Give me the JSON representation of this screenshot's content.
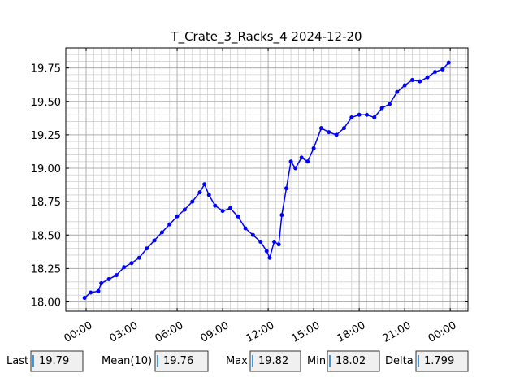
{
  "chart_data": {
    "type": "line",
    "title": "T_Crate_3_Racks_4 2024-12-20",
    "x": [
      -0.1,
      0.3,
      0.8,
      1.0,
      1.5,
      2.0,
      2.5,
      3.0,
      3.5,
      4.0,
      4.5,
      5.0,
      5.5,
      6.0,
      6.5,
      7.0,
      7.5,
      7.8,
      8.1,
      8.5,
      9.0,
      9.5,
      10.0,
      10.5,
      11.0,
      11.5,
      11.9,
      12.1,
      12.4,
      12.7,
      12.9,
      13.2,
      13.5,
      13.8,
      14.2,
      14.6,
      15.0,
      15.5,
      16.0,
      16.5,
      17.0,
      17.5,
      18.0,
      18.5,
      19.0,
      19.5,
      20.0,
      20.5,
      21.0,
      21.5,
      22.0,
      22.5,
      23.0,
      23.5,
      23.9
    ],
    "series": [
      {
        "color": "#0000ff",
        "values": [
          18.03,
          18.07,
          18.08,
          18.14,
          18.17,
          18.2,
          18.26,
          18.29,
          18.33,
          18.4,
          18.46,
          18.52,
          18.58,
          18.64,
          18.69,
          18.75,
          18.82,
          18.88,
          18.8,
          18.72,
          18.68,
          18.7,
          18.64,
          18.55,
          18.5,
          18.45,
          18.38,
          18.33,
          18.45,
          18.43,
          18.65,
          18.85,
          19.05,
          19.0,
          19.08,
          19.05,
          19.15,
          19.3,
          19.27,
          19.25,
          19.3,
          19.38,
          19.4,
          19.4,
          19.38,
          19.45,
          19.48,
          19.57,
          19.62,
          19.66,
          19.65,
          19.68,
          19.72,
          19.74,
          19.79
        ]
      }
    ],
    "xlim": [
      -1.34,
      25.17
    ],
    "ylim": [
      17.93,
      19.9
    ],
    "xticks": [
      {
        "value": 0,
        "label": "00:00"
      },
      {
        "value": 3,
        "label": "03:00"
      },
      {
        "value": 6,
        "label": "06:00"
      },
      {
        "value": 9,
        "label": "09:00"
      },
      {
        "value": 12,
        "label": "12:00"
      },
      {
        "value": 15,
        "label": "15:00"
      },
      {
        "value": 18,
        "label": "18:00"
      },
      {
        "value": 21,
        "label": "21:00"
      },
      {
        "value": 24,
        "label": "00:00"
      }
    ],
    "yticks": [
      {
        "value": 18,
        "label": "18.00"
      },
      18.25,
      {
        "value": 18.5,
        "label": "18.50"
      },
      18.75,
      {
        "value": 19,
        "label": "19.00"
      },
      19.25,
      {
        "value": 19.5,
        "label": "19.50"
      },
      19.75
    ],
    "grid": true
  },
  "stats": [
    {
      "label": "Last",
      "value": 19.79
    },
    {
      "label": "Mean(10)",
      "value": 19.76
    },
    {
      "label": "Max",
      "value": 19.82
    },
    {
      "label": "Min",
      "value": 18.02
    },
    {
      "label": "Delta",
      "value": 1.799
    }
  ]
}
